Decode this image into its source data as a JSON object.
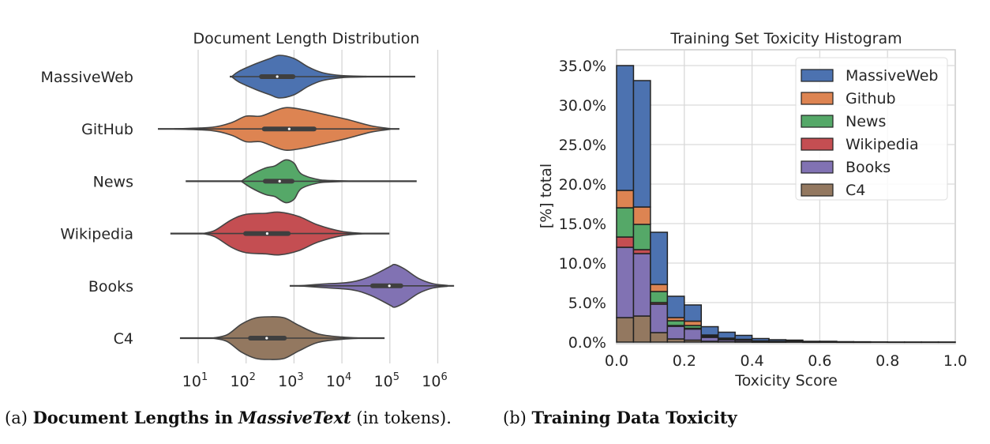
{
  "chart_data": [
    {
      "type": "violin",
      "title": "Document Length Distribution",
      "xlabel": "",
      "ylabel": "",
      "xscale": "log",
      "xlim_log10": [
        0.1,
        6.5
      ],
      "xticks": [
        {
          "base": "10",
          "exp": "1",
          "value": 10
        },
        {
          "base": "10",
          "exp": "2",
          "value": 100
        },
        {
          "base": "10",
          "exp": "3",
          "value": 1000
        },
        {
          "base": "10",
          "exp": "4",
          "value": 10000
        },
        {
          "base": "10",
          "exp": "5",
          "value": 100000
        },
        {
          "base": "10",
          "exp": "6",
          "value": 1000000
        }
      ],
      "grid": "x",
      "categories": [
        "MassiveWeb",
        "GitHub",
        "News",
        "Wikipedia",
        "Books",
        "C4"
      ],
      "series": [
        {
          "name": "MassiveWeb",
          "color": "#4c72b0",
          "log10_min": 1.66,
          "log10_q1": 2.32,
          "log10_median": 2.65,
          "log10_q3": 2.98,
          "log10_max": 5.53,
          "density": [
            [
              1.7,
              0.0
            ],
            [
              1.85,
              0.25
            ],
            [
              2.2,
              0.6
            ],
            [
              2.5,
              0.85
            ],
            [
              2.7,
              1.0
            ],
            [
              3.0,
              0.85
            ],
            [
              3.3,
              0.45
            ],
            [
              3.6,
              0.18
            ],
            [
              4.0,
              0.05
            ],
            [
              4.5,
              0.01
            ]
          ]
        },
        {
          "name": "GitHub",
          "color": "#dd8452",
          "log10_min": 0.16,
          "log10_q1": 2.38,
          "log10_median": 2.9,
          "log10_q3": 3.42,
          "log10_max": 5.2,
          "density": [
            [
              0.5,
              0.0
            ],
            [
              1.3,
              0.08
            ],
            [
              1.7,
              0.3
            ],
            [
              2.0,
              0.6
            ],
            [
              2.3,
              0.6
            ],
            [
              2.6,
              0.85
            ],
            [
              2.85,
              1.0
            ],
            [
              3.2,
              0.9
            ],
            [
              3.6,
              0.7
            ],
            [
              4.1,
              0.45
            ],
            [
              4.6,
              0.15
            ],
            [
              5.0,
              0.02
            ]
          ]
        },
        {
          "name": "News",
          "color": "#55a868",
          "log10_min": 0.74,
          "log10_q1": 2.4,
          "log10_median": 2.7,
          "log10_q3": 2.96,
          "log10_max": 5.56,
          "density": [
            [
              1.9,
              0.0
            ],
            [
              2.1,
              0.3
            ],
            [
              2.4,
              0.62
            ],
            [
              2.6,
              0.72
            ],
            [
              2.82,
              1.0
            ],
            [
              3.0,
              0.85
            ],
            [
              3.15,
              0.35
            ],
            [
              3.5,
              0.08
            ],
            [
              3.8,
              0.03
            ],
            [
              4.2,
              0.0
            ]
          ]
        },
        {
          "name": "Wikipedia",
          "color": "#c44e52",
          "log10_min": 0.42,
          "log10_q1": 1.99,
          "log10_median": 2.44,
          "log10_q3": 2.88,
          "log10_max": 4.99,
          "density": [
            [
              1.1,
              0.0
            ],
            [
              1.35,
              0.15
            ],
            [
              1.7,
              0.65
            ],
            [
              2.0,
              0.9
            ],
            [
              2.4,
              0.95
            ],
            [
              2.7,
              1.0
            ],
            [
              3.1,
              0.8
            ],
            [
              3.5,
              0.4
            ],
            [
              4.0,
              0.1
            ],
            [
              4.5,
              0.0
            ]
          ]
        },
        {
          "name": "Books",
          "color": "#8172b3",
          "log10_min": 2.91,
          "log10_q1": 4.64,
          "log10_median": 4.99,
          "log10_q3": 5.23,
          "log10_max": 6.34,
          "density": [
            [
              3.1,
              0.0
            ],
            [
              3.6,
              0.08
            ],
            [
              4.2,
              0.18
            ],
            [
              4.6,
              0.45
            ],
            [
              5.0,
              0.9
            ],
            [
              5.1,
              1.0
            ],
            [
              5.3,
              0.8
            ],
            [
              5.6,
              0.35
            ],
            [
              5.9,
              0.1
            ],
            [
              6.2,
              0.02
            ]
          ]
        },
        {
          "name": "C4",
          "color": "#937860",
          "log10_min": 0.62,
          "log10_q1": 2.09,
          "log10_median": 2.43,
          "log10_q3": 2.8,
          "log10_max": 4.89,
          "density": [
            [
              1.3,
              0.0
            ],
            [
              1.6,
              0.15
            ],
            [
              1.9,
              0.65
            ],
            [
              2.2,
              0.95
            ],
            [
              2.5,
              1.0
            ],
            [
              2.8,
              0.95
            ],
            [
              3.1,
              0.6
            ],
            [
              3.5,
              0.2
            ],
            [
              4.0,
              0.05
            ],
            [
              4.4,
              0.0
            ]
          ]
        }
      ]
    },
    {
      "type": "bar",
      "stacked": true,
      "title": "Training Set Toxicity Histogram",
      "xlabel": "Toxicity Score",
      "ylabel": "[%] total",
      "xlim": [
        0.0,
        1.0
      ],
      "ylim": [
        0.0,
        36.0
      ],
      "bin_width": 0.05,
      "bin_starts": [
        0.0,
        0.05,
        0.1,
        0.15,
        0.2,
        0.25,
        0.3,
        0.35,
        0.4,
        0.45,
        0.5,
        0.55,
        0.6,
        0.65,
        0.7,
        0.75,
        0.8,
        0.85,
        0.9,
        0.95
      ],
      "xticks": [
        "0.0",
        "0.2",
        "0.4",
        "0.6",
        "0.8",
        "1.0"
      ],
      "xtick_values": [
        0.0,
        0.2,
        0.4,
        0.6,
        0.8,
        1.0
      ],
      "yticks": [
        "0.0%",
        "5.0%",
        "10.0%",
        "15.0%",
        "20.0%",
        "25.0%",
        "30.0%",
        "35.0%"
      ],
      "ytick_values": [
        0,
        5,
        10,
        15,
        20,
        25,
        30,
        35
      ],
      "grid": "both",
      "legend_position": "top-right",
      "stack_order": [
        "C4",
        "Books",
        "Wikipedia",
        "News",
        "Github",
        "MassiveWeb"
      ],
      "series": [
        {
          "name": "MassiveWeb",
          "color": "#4c72b0",
          "values": [
            15.8,
            16.0,
            6.6,
            2.7,
            2.05,
            1.05,
            0.75,
            0.5,
            0.3,
            0.2,
            0.15,
            0.05,
            0.05,
            0.02,
            0.02,
            0.02,
            0.01,
            0.01,
            0.01,
            0.01
          ]
        },
        {
          "name": "Github",
          "color": "#dd8452",
          "values": [
            2.2,
            2.2,
            0.9,
            0.4,
            0.55,
            0.1,
            0.05,
            0.05,
            0.02,
            0.02,
            0.02,
            0.01,
            0.01,
            0.01,
            0.01,
            0.0,
            0.0,
            0.0,
            0.0,
            0.0
          ]
        },
        {
          "name": "News",
          "color": "#55a868",
          "values": [
            3.7,
            3.2,
            1.4,
            0.6,
            0.35,
            0.15,
            0.1,
            0.05,
            0.03,
            0.02,
            0.02,
            0.01,
            0.01,
            0.01,
            0.01,
            0.0,
            0.0,
            0.0,
            0.0,
            0.0
          ]
        },
        {
          "name": "Wikipedia",
          "color": "#c44e52",
          "values": [
            1.3,
            0.5,
            0.2,
            0.1,
            0.1,
            0.05,
            0.05,
            0.02,
            0.01,
            0.01,
            0.01,
            0.0,
            0.0,
            0.0,
            0.0,
            0.0,
            0.0,
            0.0,
            0.0,
            0.0
          ]
        },
        {
          "name": "Books",
          "color": "#8172b3",
          "values": [
            8.9,
            7.9,
            3.6,
            1.6,
            1.4,
            0.5,
            0.25,
            0.2,
            0.07,
            0.03,
            0.02,
            0.02,
            0.01,
            0.01,
            0.0,
            0.0,
            0.0,
            0.0,
            0.0,
            0.0
          ]
        },
        {
          "name": "C4",
          "color": "#937860",
          "values": [
            3.1,
            3.3,
            1.2,
            0.4,
            0.25,
            0.1,
            0.05,
            0.03,
            0.02,
            0.02,
            0.03,
            0.01,
            0.02,
            0.0,
            0.0,
            0.0,
            0.0,
            0.0,
            0.0,
            0.0
          ]
        }
      ]
    }
  ],
  "captions": {
    "a": {
      "label": "(a)",
      "bold": "Document Lengths in",
      "italic": "MassiveText",
      "rest": "(in tokens)."
    },
    "b": {
      "label": "(b)",
      "bold": "Training Data Toxicity"
    }
  }
}
